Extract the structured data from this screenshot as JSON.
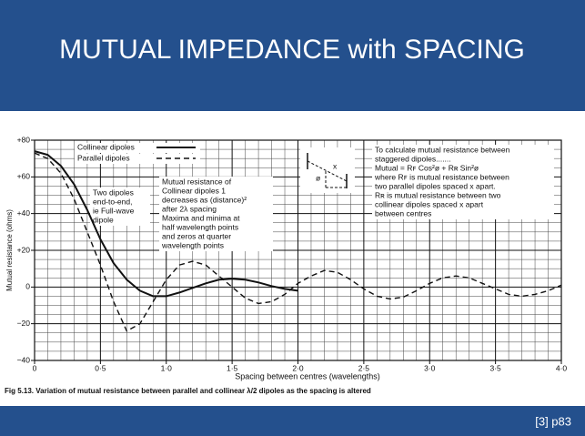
{
  "slide": {
    "title": "MUTUAL IMPEDANCE with SPACING",
    "source": "[3] p83",
    "caption": "Fig 5.13. Variation of mutual resistance between parallel and collinear λ/2 dipoles as the spacing is altered"
  },
  "chart_data": {
    "type": "line",
    "x_label": "Spacing between centres (wavelengths)",
    "y_label": "Mutual resistance (ohms)",
    "x": [
      0,
      0.1,
      0.2,
      0.3,
      0.4,
      0.5,
      0.6,
      0.7,
      0.8,
      0.9,
      1.0,
      1.1,
      1.2,
      1.3,
      1.4,
      1.5,
      1.6,
      1.7,
      1.8,
      1.9,
      2.0,
      2.1,
      2.2,
      2.3,
      2.4,
      2.5,
      2.6,
      2.7,
      2.8,
      2.9,
      3.0,
      3.1,
      3.2,
      3.3,
      3.4,
      3.5,
      3.6,
      3.7,
      3.8,
      3.9,
      4.0
    ],
    "series": [
      {
        "name": "Collinear dipoles",
        "color": "#111111",
        "dash": "solid",
        "values": [
          74,
          72,
          66,
          56,
          42,
          26,
          13,
          4,
          -2,
          -5,
          -5,
          -3,
          -0.5,
          2,
          4,
          4.5,
          4,
          2.5,
          0.5,
          -1,
          -2,
          null,
          null,
          null,
          null,
          null,
          null,
          null,
          null,
          null,
          null,
          null,
          null,
          null,
          null,
          null,
          null,
          null,
          null,
          null,
          null
        ]
      },
      {
        "name": "Parallel dipoles",
        "color": "#111111",
        "dash": "dashed",
        "values": [
          73,
          70,
          62,
          48,
          30,
          12,
          -8,
          -24,
          -20,
          -8,
          4,
          12,
          14,
          12,
          6,
          0,
          -6,
          -9,
          -8,
          -4,
          2,
          6,
          9,
          8,
          4,
          -1,
          -5,
          -6.5,
          -5.5,
          -2,
          2,
          5,
          6,
          5,
          2,
          -1,
          -4,
          -5,
          -4,
          -2,
          1
        ]
      }
    ],
    "xlim": [
      0,
      4.0
    ],
    "ylim": [
      -40,
      80
    ],
    "xticks": [
      0,
      {
        "value": 0.5,
        "label": "0·5"
      },
      {
        "value": 1.0,
        "label": "1·0"
      },
      {
        "value": 1.5,
        "label": "1·5"
      },
      {
        "value": 2.0,
        "label": "2·0"
      },
      {
        "value": 2.5,
        "label": "2·5"
      },
      {
        "value": 3.0,
        "label": "3·0"
      },
      {
        "value": 3.5,
        "label": "3·5"
      },
      {
        "value": 4.0,
        "label": "4·0"
      }
    ],
    "yticks": [
      {
        "value": 80,
        "label": "+80"
      },
      {
        "value": 60,
        "label": "+60"
      },
      {
        "value": 40,
        "label": "+40"
      },
      {
        "value": 20,
        "label": "+20"
      },
      0,
      {
        "value": -20,
        "label": "−20"
      },
      {
        "value": -40,
        "label": "−40"
      }
    ],
    "grid": true,
    "annotations": {
      "end_to_end": [
        "Two dipoles",
        "end-to-end,",
        "ie Full-wave",
        "dipole"
      ],
      "collinear_note": [
        "Mutual resistance of",
        "Collinear dipoles      1",
        "decreases as  (distance)²",
        "after 2λ spacing",
        "Maxima and minima at",
        "half wavelength points",
        "and zeros at quarter",
        "wavelength points"
      ],
      "staggered": [
        "To calculate mutual resistance between",
        "staggered dipoles.......",
        "Mutual = Rꜰ Cos²ø + Rʀ Sin²ø",
        "where Rꜰ is mutual resistance between",
        "two parallel dipoles spaced x apart.",
        "Rʀ is mutual resistance between two",
        "collinear dipoles spaced x apart",
        "between centres"
      ],
      "diagram_labels": [
        "x",
        "ø"
      ]
    }
  }
}
